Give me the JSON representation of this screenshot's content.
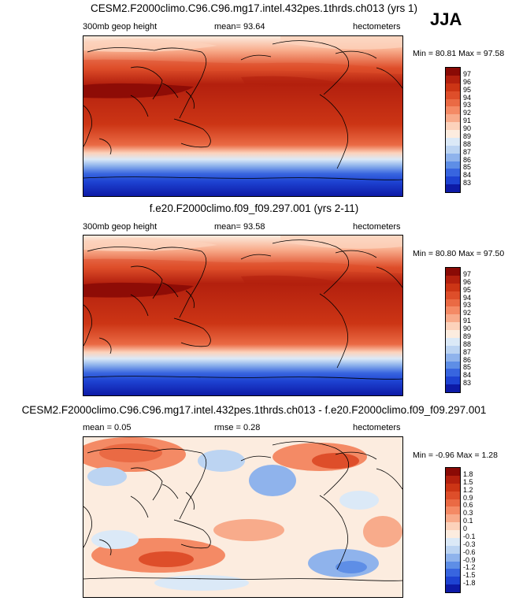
{
  "season": "JJA",
  "panels": [
    {
      "title": "CESM2.F2000climo.C96.C96.mg17.intel.432pes.1thrds.ch013 (yrs 1)",
      "left_label": "300mb geop height",
      "center_label": "mean=  93.64",
      "right_label": "hectometers",
      "minmax": "Min =  80.81 Max =  97.58",
      "colorbar_labels": [
        "97",
        "96",
        "95",
        "94",
        "93",
        "92",
        "91",
        "90",
        "89",
        "88",
        "87",
        "86",
        "85",
        "84",
        "83"
      ],
      "colorbar_colors": [
        "#8a0a05",
        "#b3200e",
        "#cc3515",
        "#de4e2a",
        "#ea6a44",
        "#f48a65",
        "#f8ab8b",
        "#fcd2bb",
        "#fcecdf",
        "#dbe9f7",
        "#bcd4f2",
        "#8fb3ec",
        "#5e8ee6",
        "#3865df",
        "#1e43d2",
        "#0d1aa6"
      ]
    },
    {
      "title": "f.e20.F2000climo.f09_f09.297.001 (yrs 2-11)",
      "left_label": "300mb geop height",
      "center_label": "mean=  93.58",
      "right_label": "hectometers",
      "minmax": "Min =  80.80 Max =  97.50",
      "colorbar_labels": [
        "97",
        "96",
        "95",
        "94",
        "93",
        "92",
        "91",
        "90",
        "89",
        "88",
        "87",
        "86",
        "85",
        "84",
        "83"
      ],
      "colorbar_colors": [
        "#8a0a05",
        "#b3200e",
        "#cc3515",
        "#de4e2a",
        "#ea6a44",
        "#f48a65",
        "#f8ab8b",
        "#fcd2bb",
        "#fcecdf",
        "#dbe9f7",
        "#bcd4f2",
        "#8fb3ec",
        "#5e8ee6",
        "#3865df",
        "#1e43d2",
        "#0d1aa6"
      ]
    },
    {
      "title": "CESM2.F2000climo.C96.C96.mg17.intel.432pes.1thrds.ch013 - f.e20.F2000climo.f09_f09.297.001",
      "left_label": "mean =   0.05",
      "center_label": "rmse =   0.28",
      "right_label": "hectometers",
      "minmax": "Min = -0.96 Max =  1.28",
      "colorbar_labels": [
        "1.8",
        "1.5",
        "1.2",
        "0.9",
        "0.6",
        "0.3",
        "0.1",
        "0",
        "-0.1",
        "-0.3",
        "-0.6",
        "-0.9",
        "-1.2",
        "-1.5",
        "-1.8"
      ],
      "colorbar_colors": [
        "#8a0a05",
        "#b3200e",
        "#cc3515",
        "#de4e2a",
        "#ea6a44",
        "#f48a65",
        "#f8ab8b",
        "#fcd2bb",
        "#fcecdf",
        "#dbe9f7",
        "#bcd4f2",
        "#8fb3ec",
        "#5e8ee6",
        "#3865df",
        "#1e43d2",
        "#0d1aa6"
      ]
    }
  ]
}
